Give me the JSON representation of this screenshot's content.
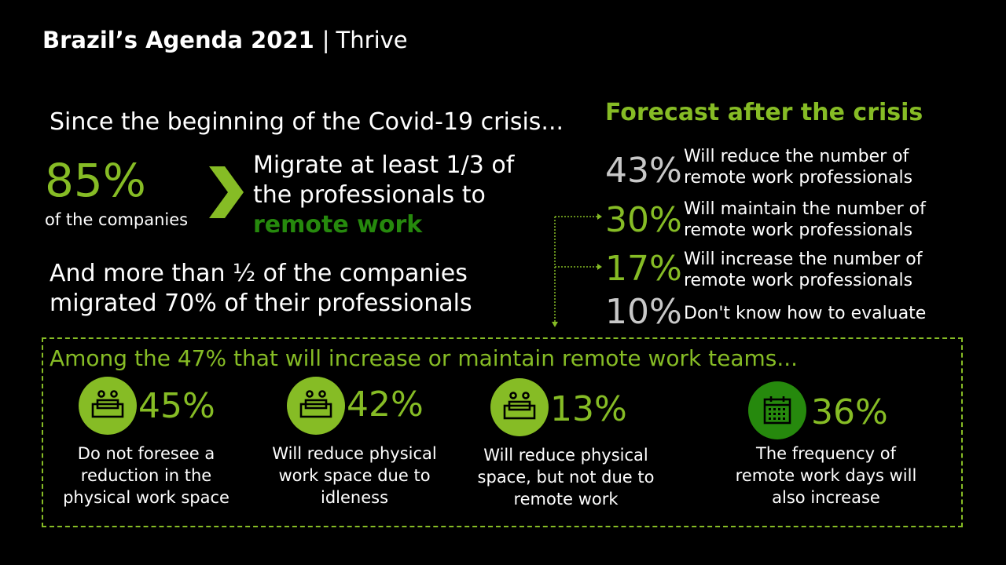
{
  "header": {
    "title_bold": "Brazil’s Agenda 2021",
    "separator": "|",
    "title_light": "Thrive"
  },
  "intro": {
    "since": "Since the beginning of the Covid-19 crisis...",
    "big_pct": "85%",
    "companies": "of the companies",
    "migrate_line1": "Migrate at least 1/3 of",
    "migrate_line2": "the professionals to",
    "migrate_emphasis": "remote work",
    "more_line1": "And more than ½ of the companies",
    "more_line2": "migrated 70% of their professionals"
  },
  "forecast": {
    "title": "Forecast after the crisis",
    "items": [
      {
        "pct": "43%",
        "line1": "Will reduce the number of",
        "line2": "remote work professionals"
      },
      {
        "pct": "30%",
        "line1": "Will maintain the number of",
        "line2": "remote work professionals"
      },
      {
        "pct": "17%",
        "line1": "Will increase the number of",
        "line2": "remote work professionals"
      },
      {
        "pct": "10%",
        "line1": "Don't know how to evaluate",
        "line2": ""
      }
    ]
  },
  "among": {
    "title": "Among the 47% that will increase or maintain remote work teams...",
    "stats": [
      {
        "pct": "45%",
        "desc": "Do not foresee  a\nreduction in the\nphysical work space",
        "icon": "office-desk-icon"
      },
      {
        "pct": "42%",
        "desc": "Will reduce physical\nwork space due to\nidleness",
        "icon": "office-desk-icon"
      },
      {
        "pct": "13%",
        "desc": "Will reduce physical\nspace, but not due to\nremote work",
        "icon": "office-desk-icon"
      },
      {
        "pct": "36%",
        "desc": "The frequency of\nremote work days will\nalso increase",
        "icon": "calendar-icon"
      }
    ]
  },
  "colors": {
    "background": "#000000",
    "accent_light_green": "#86bc25",
    "accent_dark_green": "#26890d",
    "gray": "#c8c8c8"
  }
}
